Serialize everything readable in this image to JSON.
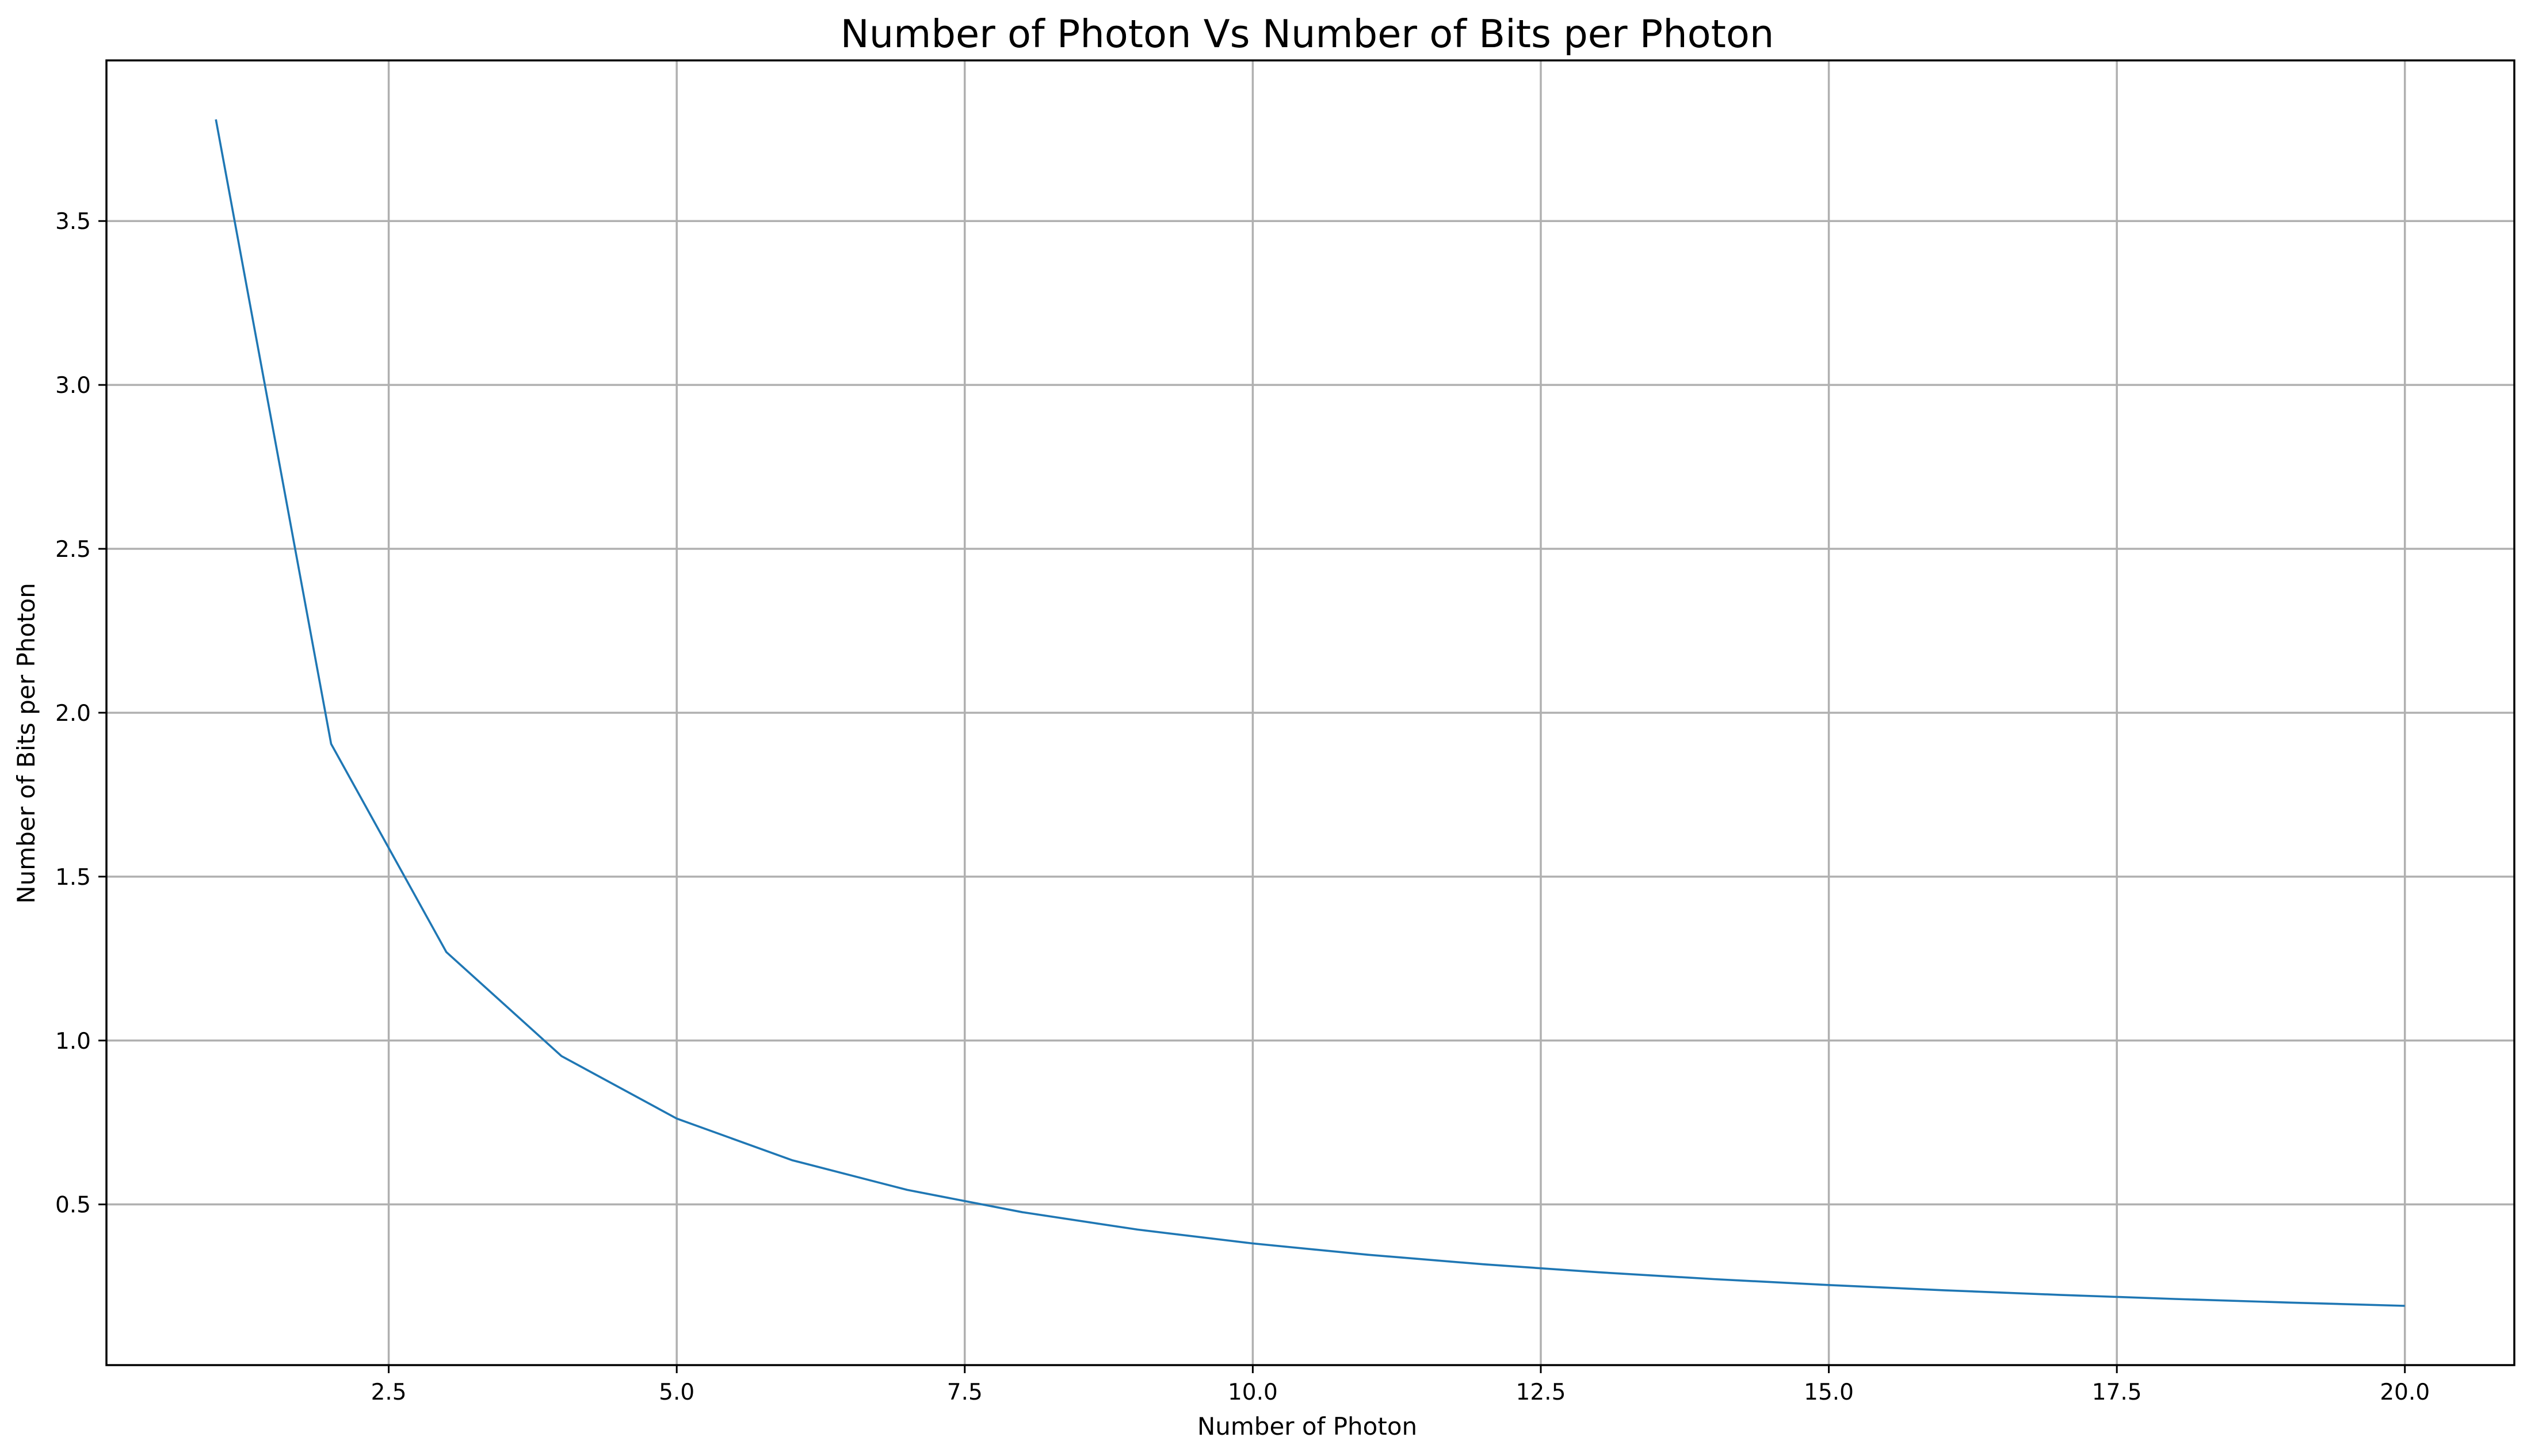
{
  "chart_data": {
    "type": "line",
    "title": "Number of Photon Vs Number of Bits per Photon",
    "xlabel": "Number of Photon",
    "ylabel": "Number of Bits per Photon",
    "xlim": [
      0.05,
      20.95
    ],
    "ylim": [
      0.0098,
      3.99
    ],
    "xticks": [
      2.5,
      5.0,
      7.5,
      10.0,
      12.5,
      15.0,
      17.5,
      20.0
    ],
    "xtick_labels": [
      "2.5",
      "5.0",
      "7.5",
      "10.0",
      "12.5",
      "15.0",
      "17.5",
      "20.0"
    ],
    "yticks": [
      0.5,
      1.0,
      1.5,
      2.0,
      2.5,
      3.0,
      3.5
    ],
    "ytick_labels": [
      "0.5",
      "1.0",
      "1.5",
      "2.0",
      "2.5",
      "3.0",
      "3.5"
    ],
    "grid": true,
    "series": [
      {
        "color": "#1f77b4",
        "x": [
          1,
          2,
          3,
          4,
          5,
          6,
          7,
          8,
          9,
          10,
          11,
          12,
          13,
          14,
          15,
          16,
          17,
          18,
          19,
          20
        ],
        "y": [
          3.81,
          1.905,
          1.27,
          0.9525,
          0.762,
          0.635,
          0.5443,
          0.4763,
          0.4233,
          0.381,
          0.3464,
          0.3175,
          0.2931,
          0.2721,
          0.254,
          0.2381,
          0.2241,
          0.2117,
          0.2005,
          0.1905
        ]
      }
    ]
  }
}
